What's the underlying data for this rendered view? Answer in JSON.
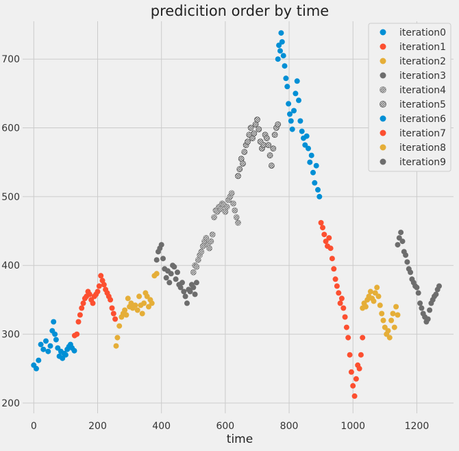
{
  "chart_data": {
    "type": "scatter",
    "title": "predicition order by time",
    "xlabel": "time",
    "ylabel": "",
    "xlim": [
      -35,
      1315
    ],
    "ylim": [
      185,
      755
    ],
    "xticks": [
      0,
      200,
      400,
      600,
      800,
      1000,
      1200
    ],
    "yticks": [
      200,
      300,
      400,
      500,
      600,
      700
    ],
    "grid": true,
    "legend_position": "top-right",
    "colors": {
      "blue": "#008fd5",
      "red": "#fc4f30",
      "yellow": "#e5ae38",
      "gray": "#6d6d6d",
      "background": "#f0f0f0",
      "grid": "#cbcbcb"
    },
    "series": [
      {
        "name": "iteration0",
        "color": "#008fd5",
        "marker": "circle",
        "x": [
          0,
          8,
          15,
          22,
          30,
          38,
          45,
          52,
          58,
          62,
          66,
          70,
          75,
          80,
          85,
          90,
          95,
          100,
          105,
          110,
          115,
          120,
          127
        ],
        "y": [
          255,
          250,
          262,
          285,
          278,
          290,
          275,
          283,
          305,
          318,
          300,
          292,
          280,
          268,
          275,
          265,
          272,
          270,
          278,
          282,
          285,
          280,
          276
        ]
      },
      {
        "name": "iteration1",
        "color": "#fc4f30",
        "marker": "circle",
        "x": [
          128,
          135,
          140,
          145,
          150,
          155,
          160,
          165,
          170,
          175,
          180,
          185,
          190,
          195,
          200,
          205,
          210,
          215,
          220,
          225,
          230,
          235,
          240,
          245,
          250,
          255
        ],
        "y": [
          298,
          300,
          318,
          328,
          338,
          345,
          352,
          355,
          362,
          358,
          350,
          345,
          355,
          358,
          362,
          370,
          385,
          378,
          372,
          365,
          360,
          355,
          350,
          338,
          330,
          322
        ]
      },
      {
        "name": "iteration2",
        "color": "#e5ae38",
        "marker": "circle",
        "x": [
          258,
          262,
          268,
          275,
          280,
          285,
          290,
          295,
          300,
          305,
          310,
          318,
          325,
          330,
          335,
          340,
          345,
          350,
          355,
          360,
          365,
          370,
          378,
          385
        ],
        "y": [
          283,
          295,
          312,
          325,
          330,
          335,
          328,
          352,
          340,
          345,
          338,
          342,
          335,
          355,
          342,
          330,
          345,
          360,
          355,
          340,
          350,
          345,
          385,
          388
        ]
      },
      {
        "name": "iteration3",
        "color": "#6d6d6d",
        "marker": "circle",
        "x": [
          385,
          390,
          395,
          400,
          405,
          410,
          415,
          420,
          425,
          430,
          435,
          440,
          445,
          450,
          455,
          460,
          465,
          470,
          475,
          480,
          485,
          490,
          495,
          500,
          505,
          510
        ],
        "y": [
          408,
          420,
          425,
          430,
          410,
          395,
          382,
          392,
          375,
          388,
          400,
          398,
          380,
          390,
          372,
          368,
          375,
          362,
          355,
          345,
          365,
          362,
          372,
          368,
          358,
          375
        ]
      },
      {
        "name": "iteration4",
        "color": "#8a8a8a",
        "marker": "hatched",
        "x": [
          500,
          505,
          510,
          515,
          520,
          525,
          530,
          535,
          540,
          545,
          550,
          555,
          560,
          565,
          570,
          575,
          580,
          585,
          590,
          595,
          600,
          605,
          610,
          615,
          620,
          625,
          630,
          635,
          640
        ],
        "y": [
          390,
          400,
          398,
          408,
          415,
          420,
          428,
          435,
          440,
          430,
          425,
          435,
          445,
          470,
          480,
          478,
          485,
          482,
          490,
          488,
          478,
          485,
          495,
          500,
          505,
          490,
          480,
          470,
          462
        ]
      },
      {
        "name": "iteration5",
        "color": "#5a5a5a",
        "marker": "hatched",
        "x": [
          640,
          645,
          650,
          655,
          660,
          665,
          670,
          675,
          680,
          685,
          690,
          695,
          700,
          705,
          710,
          715,
          720,
          725,
          730,
          735,
          740,
          745,
          750,
          755,
          760,
          765
        ],
        "y": [
          530,
          540,
          555,
          548,
          565,
          575,
          580,
          590,
          600,
          585,
          592,
          605,
          612,
          598,
          580,
          570,
          575,
          590,
          585,
          575,
          560,
          545,
          570,
          590,
          600,
          605
        ]
      },
      {
        "name": "iteration6",
        "color": "#008fd5",
        "marker": "circle",
        "x": [
          765,
          768,
          772,
          775,
          778,
          782,
          786,
          790,
          794,
          798,
          802,
          806,
          810,
          815,
          820,
          825,
          830,
          835,
          840,
          845,
          850,
          855,
          860,
          865,
          870,
          875,
          880,
          885,
          890,
          895
        ],
        "y": [
          700,
          720,
          712,
          738,
          725,
          705,
          690,
          672,
          660,
          635,
          620,
          610,
          598,
          625,
          650,
          668,
          640,
          610,
          595,
          585,
          575,
          588,
          570,
          550,
          560,
          535,
          520,
          545,
          510,
          500
        ]
      },
      {
        "name": "iteration7",
        "color": "#fc4f30",
        "marker": "circle",
        "x": [
          900,
          905,
          910,
          915,
          920,
          925,
          930,
          935,
          940,
          945,
          950,
          955,
          960,
          965,
          970,
          975,
          980,
          985,
          990,
          995,
          1000,
          1005,
          1010,
          1015,
          1020,
          1025,
          1030
        ],
        "y": [
          462,
          455,
          445,
          435,
          428,
          440,
          425,
          410,
          395,
          380,
          370,
          360,
          345,
          352,
          338,
          325,
          310,
          295,
          270,
          245,
          225,
          210,
          235,
          255,
          250,
          270,
          295
        ]
      },
      {
        "name": "iteration8",
        "color": "#e5ae38",
        "marker": "circle",
        "x": [
          1030,
          1035,
          1040,
          1045,
          1050,
          1055,
          1060,
          1065,
          1070,
          1075,
          1080,
          1085,
          1090,
          1095,
          1100,
          1105,
          1110,
          1115,
          1120,
          1125,
          1130,
          1135,
          1140
        ],
        "y": [
          338,
          345,
          340,
          350,
          355,
          362,
          352,
          348,
          360,
          368,
          355,
          342,
          330,
          320,
          310,
          300,
          305,
          295,
          320,
          330,
          310,
          340,
          328
        ]
      },
      {
        "name": "iteration9",
        "color": "#6d6d6d",
        "marker": "circle",
        "x": [
          1140,
          1145,
          1150,
          1155,
          1160,
          1165,
          1170,
          1175,
          1180,
          1185,
          1190,
          1195,
          1200,
          1205,
          1210,
          1215,
          1220,
          1225,
          1230,
          1235,
          1240,
          1245,
          1250,
          1255,
          1260,
          1265,
          1270
        ],
        "y": [
          430,
          440,
          448,
          435,
          420,
          415,
          405,
          395,
          390,
          380,
          375,
          370,
          368,
          360,
          345,
          338,
          330,
          325,
          318,
          322,
          335,
          345,
          350,
          355,
          358,
          365,
          370
        ]
      }
    ]
  }
}
